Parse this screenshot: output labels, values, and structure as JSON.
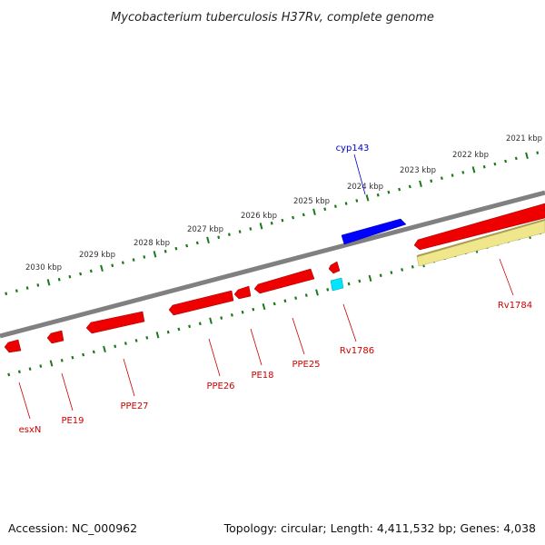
{
  "title": "Mycobacterium tuberculosis H37Rv, complete genome",
  "footer": {
    "accession": "Accession: NC_000962",
    "summary": "Topology: circular; Length: 4,411,532 bp; Genes: 4,038"
  },
  "kbp_labels": [
    "2021 kbp",
    "2022 kbp",
    "2023 kbp",
    "2024 kbp",
    "2025 kbp",
    "2026 kbp",
    "2027 kbp",
    "2028 kbp",
    "2029 kbp",
    "2030 kbp"
  ],
  "gene_labels": [
    {
      "name": "cyp143",
      "color": "#0000cc"
    },
    {
      "name": "Rv1784",
      "color": "#cc0000"
    },
    {
      "name": "Rv1786",
      "color": "#cc0000"
    },
    {
      "name": "PPE25",
      "color": "#cc0000"
    },
    {
      "name": "PE18",
      "color": "#cc0000"
    },
    {
      "name": "PPE26",
      "color": "#cc0000"
    },
    {
      "name": "PPE27",
      "color": "#cc0000"
    },
    {
      "name": "PE19",
      "color": "#cc0000"
    },
    {
      "name": "esxN",
      "color": "#cc0000"
    }
  ],
  "colors": {
    "backbone": "#808080",
    "ticks": "#1a7a1a",
    "forward_gene": "#0000ff",
    "reverse_gene": "#ee0000",
    "misc_feature": "#f0e68c",
    "small_feature": "#00e5ff"
  }
}
